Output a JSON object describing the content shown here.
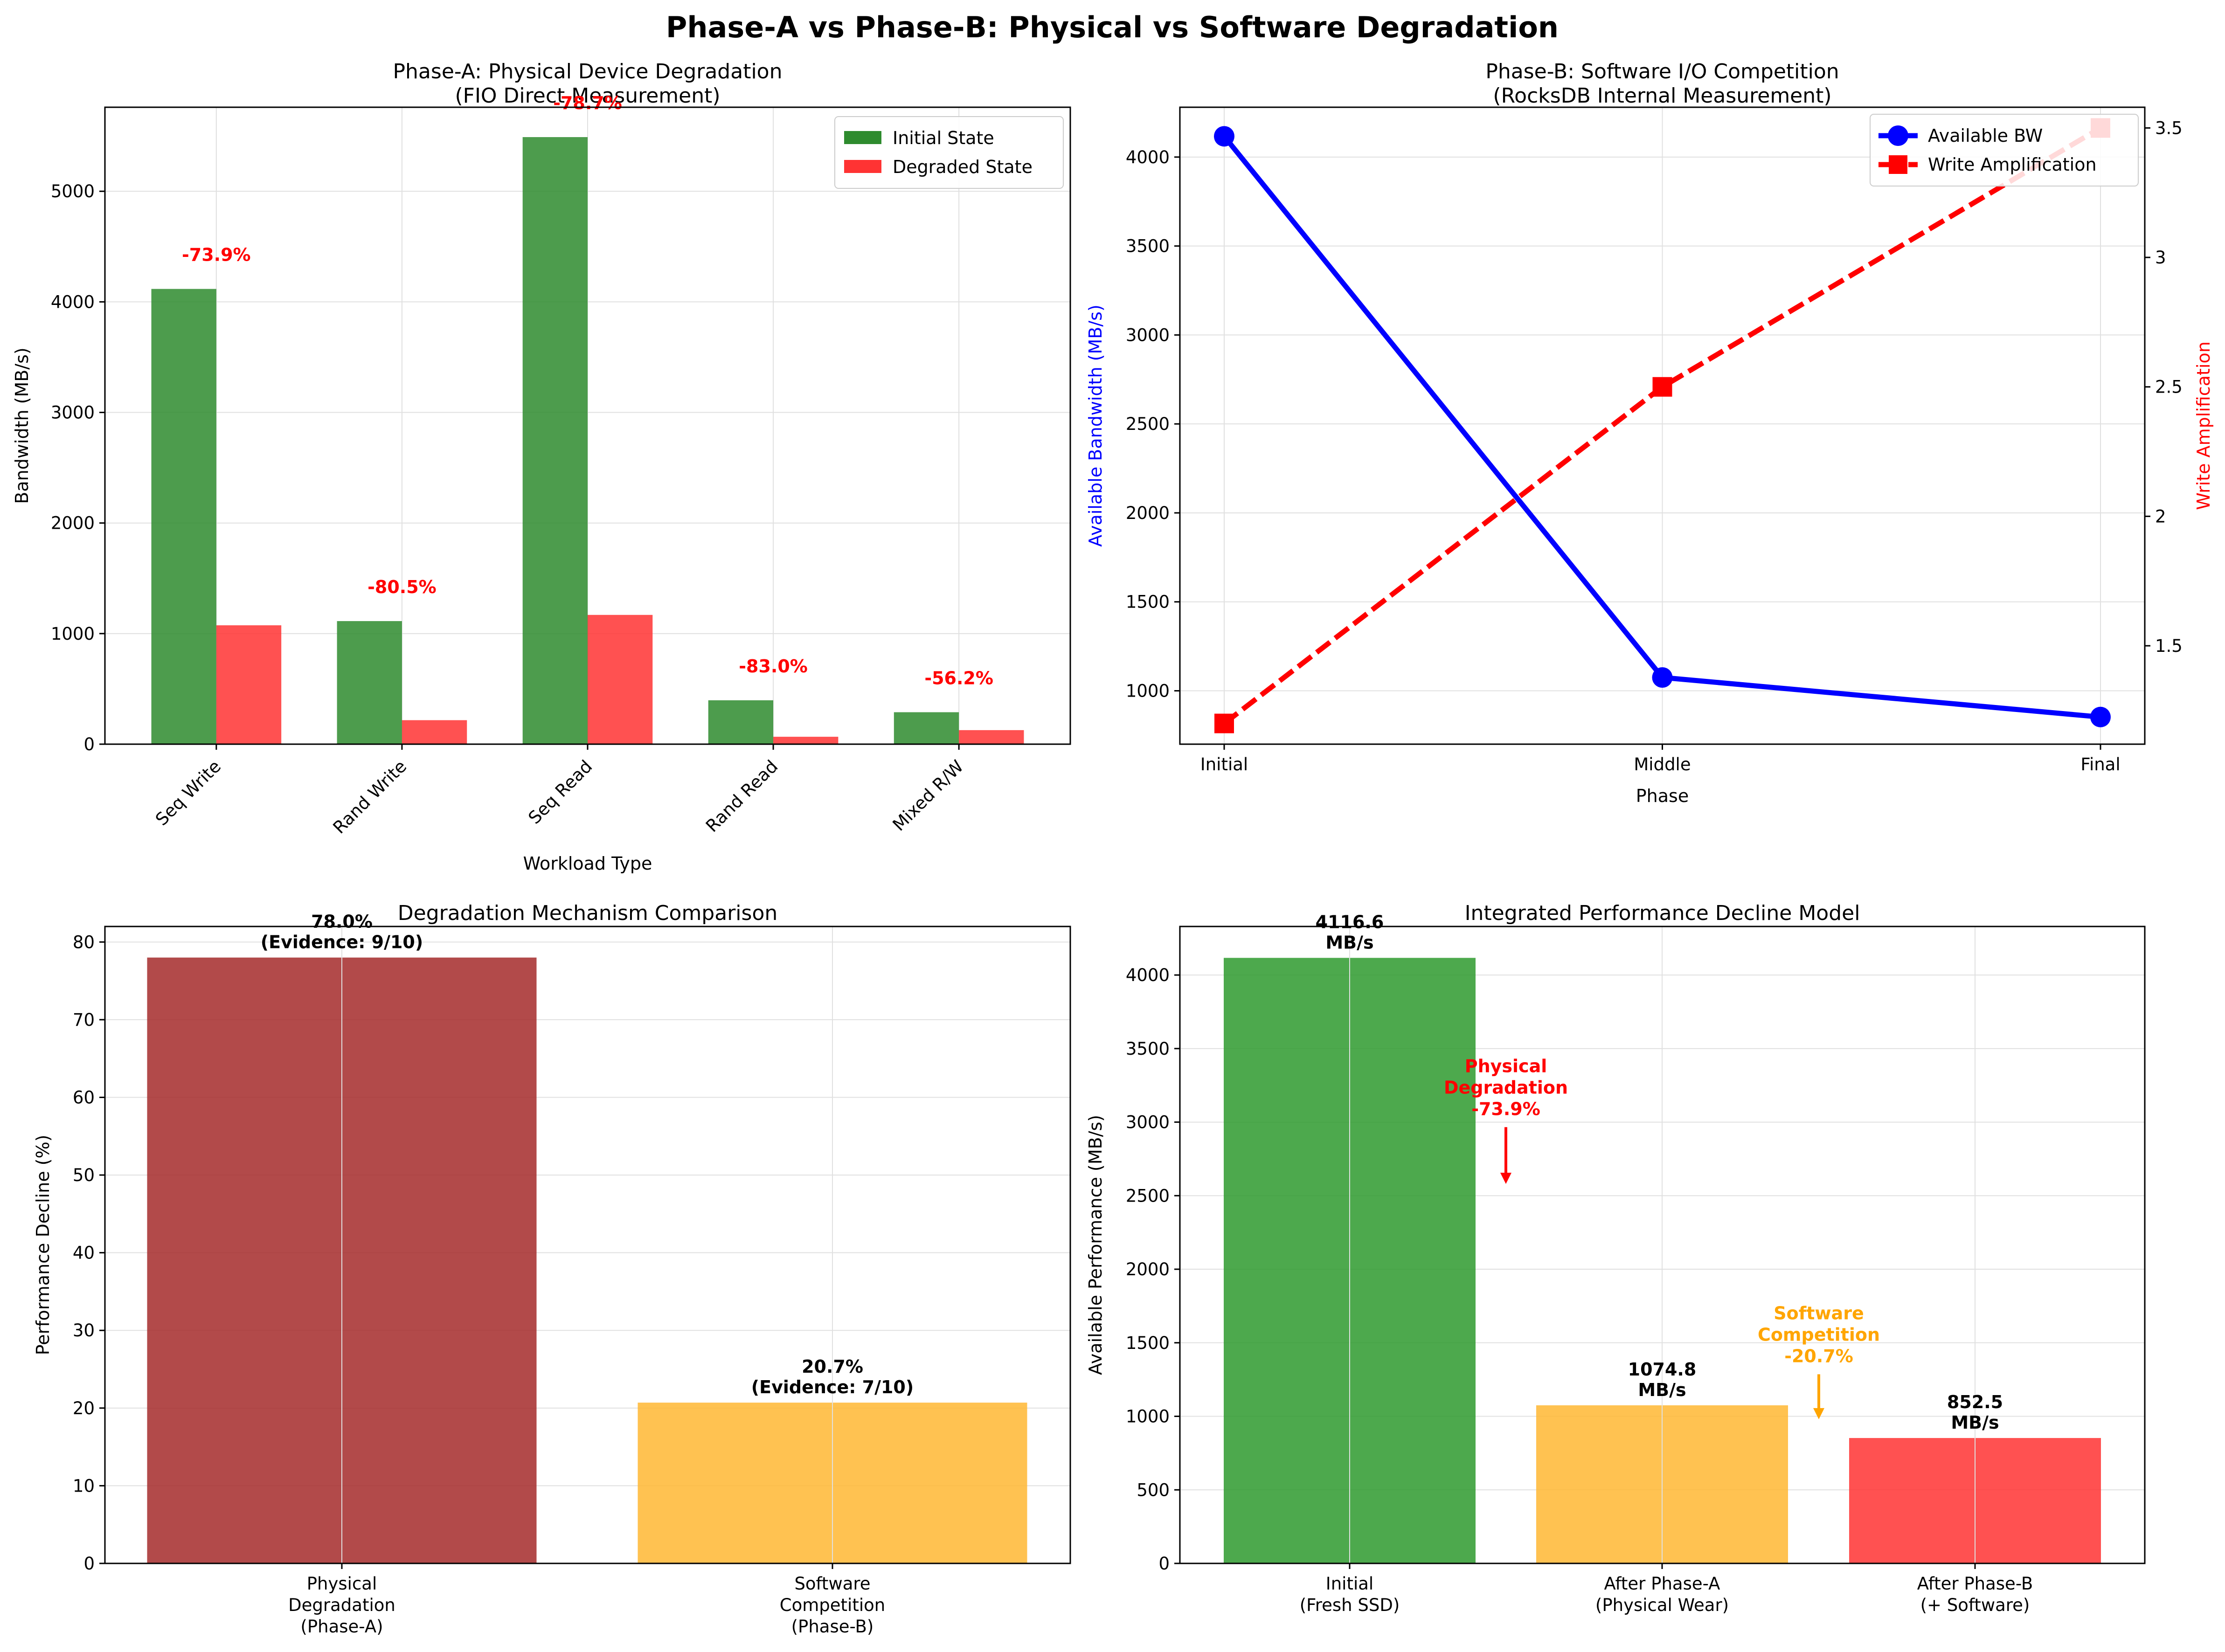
{
  "figure": {
    "suptitle": "Phase-A vs Phase-B: Physical vs Software Degradation"
  },
  "chart_data": [
    {
      "id": "phaseA",
      "type": "bar",
      "title": "Phase-A: Physical Device Degradation",
      "subtitle": "(FIO Direct Measurement)",
      "xlabel": "Workload Type",
      "ylabel": "Bandwidth (MB/s)",
      "ylim": [
        0,
        5760
      ],
      "yticks": [
        0,
        1000,
        2000,
        3000,
        4000,
        5000
      ],
      "grid": true,
      "legend": "top-right",
      "categories": [
        "Seq Write",
        "Rand Write",
        "Seq Read",
        "Rand Read",
        "Mixed R/W"
      ],
      "series": [
        {
          "name": "Initial State",
          "color": "#2e8b2e",
          "values": [
            4117,
            1113,
            5490,
            397,
            289
          ]
        },
        {
          "name": "Degraded State",
          "color": "#ff3333",
          "values": [
            1075,
            217,
            1169,
            67,
            127
          ]
        }
      ],
      "annotations": [
        "-73.9%",
        "-80.5%",
        "-78.7%",
        "-83.0%",
        "-56.2%"
      ],
      "annotation_color": "#ff0000"
    },
    {
      "id": "phaseB",
      "type": "line",
      "title": "Phase-B: Software I/O Competition",
      "subtitle": "(RocksDB Internal Measurement)",
      "xlabel": "Phase",
      "ylabel": "Available Bandwidth (MB/s)",
      "y2label": "Write Amplification",
      "categories": [
        "Initial",
        "Middle",
        "Final"
      ],
      "ylim": [
        700,
        4280
      ],
      "yticks": [
        1000,
        1500,
        2000,
        2500,
        3000,
        3500,
        4000
      ],
      "y2lim": [
        1.12,
        3.58
      ],
      "y2ticks": [
        1.5,
        2.0,
        2.5,
        3.0,
        3.5
      ],
      "grid": true,
      "legend": "top-right",
      "series": [
        {
          "name": "Available BW",
          "color": "#0000ff",
          "axis": "left",
          "marker": "circle",
          "values": [
            4116.6,
            1074.8,
            852.5
          ]
        },
        {
          "name": "Write Amplification",
          "color": "#ff0000",
          "axis": "right",
          "marker": "square",
          "dashed": true,
          "values": [
            1.2,
            2.5,
            3.5
          ]
        }
      ]
    },
    {
      "id": "mechanism",
      "type": "bar",
      "title": "Degradation Mechanism Comparison",
      "ylabel": "Performance Decline (%)",
      "ylim": [
        0,
        82
      ],
      "yticks": [
        0,
        10,
        20,
        30,
        40,
        50,
        60,
        70,
        80
      ],
      "grid": true,
      "categories": [
        [
          "Physical",
          "Degradation",
          "(Phase-A)"
        ],
        [
          "Software",
          "Competition",
          "(Phase-B)"
        ]
      ],
      "values": [
        78.0,
        20.7
      ],
      "colors": [
        "#a52a2a",
        "#ffb732"
      ],
      "labels": [
        [
          "78.0%",
          "(Evidence: 9/10)"
        ],
        [
          "20.7%",
          "(Evidence: 7/10)"
        ]
      ]
    },
    {
      "id": "integrated",
      "type": "bar",
      "title": "Integrated Performance Decline Model",
      "ylabel": "Available Performance (MB/s)",
      "ylim": [
        0,
        4330
      ],
      "yticks": [
        0,
        500,
        1000,
        1500,
        2000,
        2500,
        3000,
        3500,
        4000
      ],
      "grid": true,
      "categories": [
        [
          "Initial",
          "(Fresh SSD)"
        ],
        [
          "After Phase-A",
          "(Physical Wear)"
        ],
        [
          "After Phase-B",
          "(+ Software)"
        ]
      ],
      "values": [
        4116.6,
        1074.8,
        852.5
      ],
      "colors": [
        "#2e9a2e",
        "#ffb732",
        "#ff3333"
      ],
      "labels": [
        [
          "4116.6",
          "MB/s"
        ],
        [
          "1074.8",
          "MB/s"
        ],
        [
          "852.5",
          "MB/s"
        ]
      ],
      "annotations": [
        {
          "lines": [
            "Physical",
            "Degradation",
            "-73.9%"
          ],
          "color": "#ff0000"
        },
        {
          "lines": [
            "Software",
            "Competition",
            "-20.7%"
          ],
          "color": "#ffa500"
        }
      ]
    }
  ]
}
